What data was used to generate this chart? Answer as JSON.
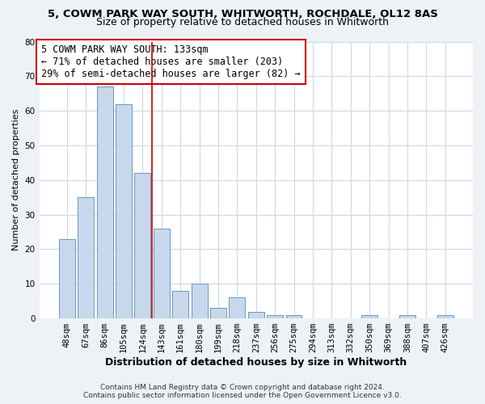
{
  "title": "5, COWM PARK WAY SOUTH, WHITWORTH, ROCHDALE, OL12 8AS",
  "subtitle": "Size of property relative to detached houses in Whitworth",
  "xlabel": "Distribution of detached houses by size in Whitworth",
  "ylabel": "Number of detached properties",
  "bar_labels": [
    "48sqm",
    "67sqm",
    "86sqm",
    "105sqm",
    "124sqm",
    "143sqm",
    "161sqm",
    "180sqm",
    "199sqm",
    "218sqm",
    "237sqm",
    "256sqm",
    "275sqm",
    "294sqm",
    "313sqm",
    "332sqm",
    "350sqm",
    "369sqm",
    "388sqm",
    "407sqm",
    "426sqm"
  ],
  "bar_values": [
    23,
    35,
    67,
    62,
    42,
    26,
    8,
    10,
    3,
    6,
    2,
    1,
    1,
    0,
    0,
    0,
    1,
    0,
    1,
    0,
    1
  ],
  "bar_color": "#c8d8ec",
  "bar_edge_color": "#6699bb",
  "vline_color": "#cc0000",
  "vline_position": 4.5,
  "annotation_text": "5 COWM PARK WAY SOUTH: 133sqm\n← 71% of detached houses are smaller (203)\n29% of semi-detached houses are larger (82) →",
  "annotation_box_color": "#ffffff",
  "annotation_box_edge_color": "#cc0000",
  "ylim": [
    0,
    80
  ],
  "yticks": [
    0,
    10,
    20,
    30,
    40,
    50,
    60,
    70,
    80
  ],
  "footer_text": "Contains HM Land Registry data © Crown copyright and database right 2024.\nContains public sector information licensed under the Open Government Licence v3.0.",
  "background_color": "#eef2f7",
  "plot_background_color": "#ffffff",
  "grid_color": "#d0d8e4",
  "title_fontsize": 9.5,
  "subtitle_fontsize": 9,
  "xlabel_fontsize": 9,
  "ylabel_fontsize": 8,
  "tick_fontsize": 7.5,
  "annotation_fontsize": 8.5,
  "footer_fontsize": 6.5
}
